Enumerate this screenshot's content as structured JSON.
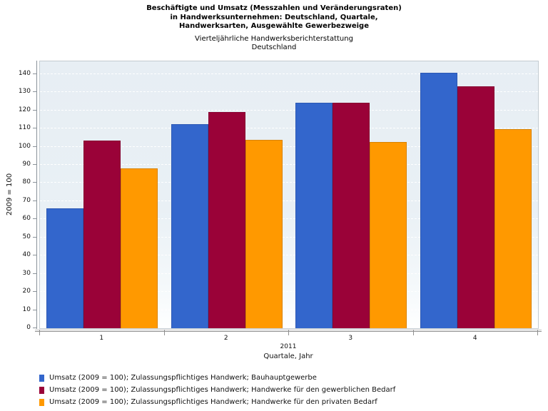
{
  "header": {
    "title_lines": [
      "Beschäftigte und Umsatz (Messzahlen und Veränderungsraten)",
      "in Handwerksunternehmen: Deutschland, Quartale,",
      "Handwerksarten, Ausgewählte Gewerbezweige"
    ],
    "subtitle_lines": [
      "Vierteljährliche Handwerksberichterstattung",
      "Deutschland"
    ]
  },
  "chart_data": {
    "type": "bar",
    "title": "Beschäftigte und Umsatz (Messzahlen und Veränderungsraten) in Handwerksunternehmen: Deutschland, Quartale, Handwerksarten, Ausgewählte Gewerbezweige",
    "subtitle": "Vierteljährliche Handwerksberichterstattung Deutschland",
    "categories": [
      "1",
      "2",
      "3",
      "4"
    ],
    "year_label": "2011",
    "xlabel": "Quartale, Jahr",
    "ylabel": "2009 = 100",
    "ylim": [
      0,
      147
    ],
    "yticks": [
      0,
      10,
      20,
      30,
      40,
      50,
      60,
      70,
      80,
      90,
      100,
      110,
      120,
      130,
      140
    ],
    "grid": "horizontal-white-dashed",
    "legend_position": "bottom-left",
    "series": [
      {
        "name": "Umsatz (2009 = 100); Zulassungspflichtiges Handwerk; Bauhauptgewerbe",
        "color": "#3366CC",
        "border": "#2C58B4",
        "values": [
          66.0,
          112.4,
          124.3,
          140.6
        ]
      },
      {
        "name": "Umsatz (2009 = 100); Zulassungspflichtiges Handwerk; Handwerke für den gewerblichen Bedarf",
        "color": "#9A0238",
        "border": "#850230",
        "values": [
          103.4,
          119.1,
          124.2,
          133.1
        ]
      },
      {
        "name": "Umsatz (2009 = 100); Zulassungspflichtiges Handwerk; Handwerke für den privaten Bedarf",
        "color": "#FF9900",
        "border": "#D98200",
        "values": [
          87.9,
          103.9,
          102.5,
          109.8
        ]
      }
    ]
  },
  "colors": {
    "plot_bg_top": "#E7EEF4",
    "plot_bg_bottom": "#FFFFFF",
    "plot_border": "#C3CBD1",
    "axis": "#8A9299",
    "text": "#000000"
  }
}
